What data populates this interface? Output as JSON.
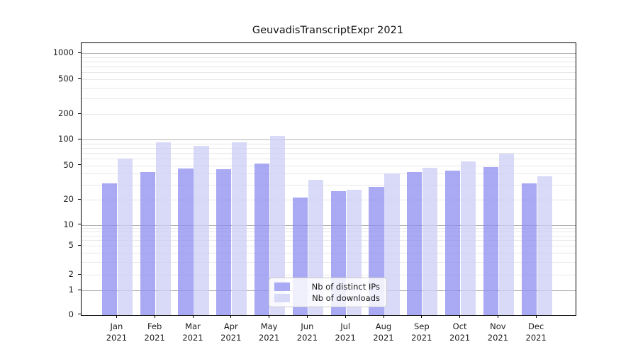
{
  "chart_data": {
    "type": "bar",
    "title": "GeuvadisTranscriptExpr 2021",
    "categories": [
      "Jan 2021",
      "Feb 2021",
      "Mar 2021",
      "Apr 2021",
      "May 2021",
      "Jun 2021",
      "Jul 2021",
      "Aug 2021",
      "Sep 2021",
      "Oct 2021",
      "Nov 2021",
      "Dec 2021"
    ],
    "series": [
      {
        "name": "Nb of distinct IPs",
        "color": "rgba(140,140,240,0.75)",
        "legend_color": "#a9a9f4",
        "values": [
          31,
          42,
          46,
          45,
          52,
          21,
          25,
          28,
          42,
          43,
          48,
          31
        ]
      },
      {
        "name": "Nb of downloads",
        "color": "rgba(204,204,245,0.75)",
        "legend_color": "#d9d9f8",
        "values": [
          60,
          92,
          84,
          93,
          110,
          34,
          26,
          40,
          47,
          55,
          68,
          37
        ]
      }
    ],
    "xlabel": "",
    "ylabel": "",
    "yscale": "symlog",
    "y_ticks": [
      0,
      1,
      2,
      5,
      10,
      20,
      50,
      100,
      200,
      500,
      1000
    ],
    "y_minor_gridlines": [
      3,
      4,
      6,
      7,
      8,
      9,
      30,
      40,
      60,
      70,
      80,
      90,
      300,
      400,
      600,
      700,
      800,
      900
    ],
    "ylim": [
      0,
      1400
    ],
    "grid": true,
    "legend_position": "lower center"
  },
  "colors": {
    "grid_major": "#b3b3b3",
    "grid_minor": "#e7e7e7",
    "axis": "#000000",
    "text": "#1a1a1a"
  }
}
